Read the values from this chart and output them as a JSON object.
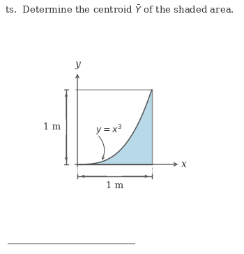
{
  "title_text": "ts.  Determine the centroid $\\bar{Y}$ of the shaded area.",
  "background_color": "#ffffff",
  "shade_color": "#b8d9e8",
  "shade_alpha": 1.0,
  "line_color": "#888888",
  "dark_color": "#555555",
  "text_color": "#333333",
  "curve_label": "$y = x^3$",
  "x_label": "x",
  "y_label": "y",
  "dim_label_x": "1 m",
  "dim_label_y": "1 m",
  "fig_width": 3.5,
  "fig_height": 3.63
}
